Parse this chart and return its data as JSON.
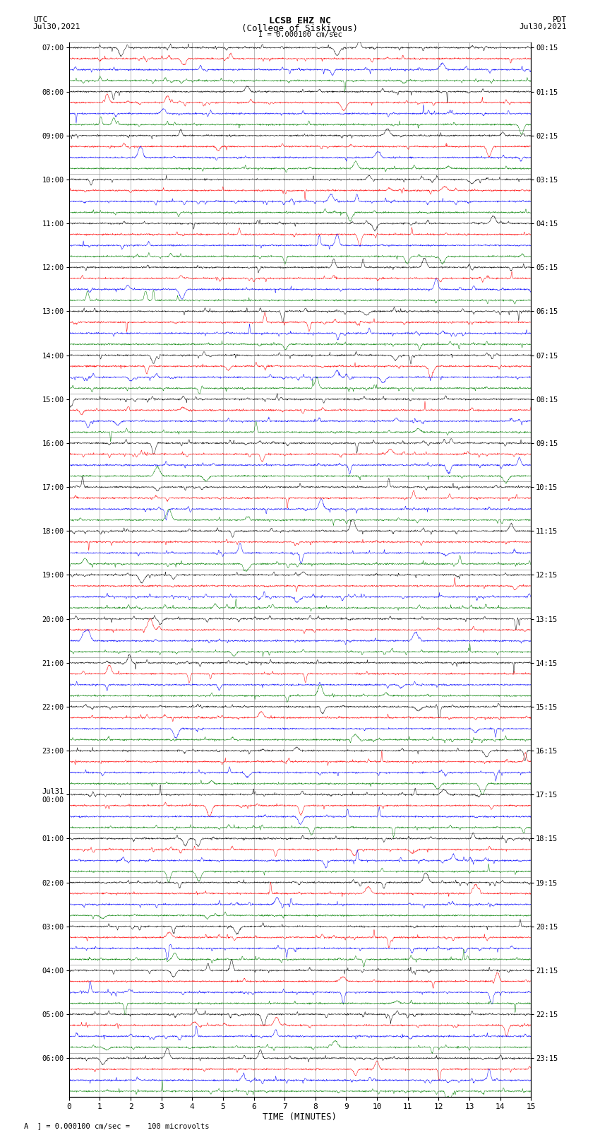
{
  "title_line1": "LCSB EHZ NC",
  "title_line2": "(College of Siskiyous)",
  "scale_label": "I = 0.000100 cm/sec",
  "left_date": "Jul30,2021",
  "right_date": "Jul30,2021",
  "left_tz": "UTC",
  "right_tz": "PDT",
  "bottom_label": "TIME (MINUTES)",
  "footnote": "A  ] = 0.000100 cm/sec =    100 microvolts",
  "num_rows": 96,
  "colors_cycle": [
    "black",
    "red",
    "blue",
    "green"
  ],
  "trace_amplitude": 0.42,
  "background_color": "white",
  "left_tick_labels": [
    "07:00",
    "",
    "",
    "",
    "08:00",
    "",
    "",
    "",
    "09:00",
    "",
    "",
    "",
    "10:00",
    "",
    "",
    "",
    "11:00",
    "",
    "",
    "",
    "12:00",
    "",
    "",
    "",
    "13:00",
    "",
    "",
    "",
    "14:00",
    "",
    "",
    "",
    "15:00",
    "",
    "",
    "",
    "16:00",
    "",
    "",
    "",
    "17:00",
    "",
    "",
    "",
    "18:00",
    "",
    "",
    "",
    "19:00",
    "",
    "",
    "",
    "20:00",
    "",
    "",
    "",
    "21:00",
    "",
    "",
    "",
    "22:00",
    "",
    "",
    "",
    "23:00",
    "",
    "",
    "",
    "Jul31\n00:00",
    "",
    "",
    "",
    "01:00",
    "",
    "",
    "",
    "02:00",
    "",
    "",
    "",
    "03:00",
    "",
    "",
    "",
    "04:00",
    "",
    "",
    "",
    "05:00",
    "",
    "",
    "",
    "06:00",
    "",
    "",
    ""
  ],
  "right_tick_labels": [
    "00:15",
    "",
    "",
    "",
    "01:15",
    "",
    "",
    "",
    "02:15",
    "",
    "",
    "",
    "03:15",
    "",
    "",
    "",
    "04:15",
    "",
    "",
    "",
    "05:15",
    "",
    "",
    "",
    "06:15",
    "",
    "",
    "",
    "07:15",
    "",
    "",
    "",
    "08:15",
    "",
    "",
    "",
    "09:15",
    "",
    "",
    "",
    "10:15",
    "",
    "",
    "",
    "11:15",
    "",
    "",
    "",
    "12:15",
    "",
    "",
    "",
    "13:15",
    "",
    "",
    "",
    "14:15",
    "",
    "",
    "",
    "15:15",
    "",
    "",
    "",
    "16:15",
    "",
    "",
    "",
    "17:15",
    "",
    "",
    "",
    "18:15",
    "",
    "",
    "",
    "19:15",
    "",
    "",
    "",
    "20:15",
    "",
    "",
    "",
    "21:15",
    "",
    "",
    "",
    "22:15",
    "",
    "",
    "",
    "23:15",
    "",
    "",
    ""
  ]
}
